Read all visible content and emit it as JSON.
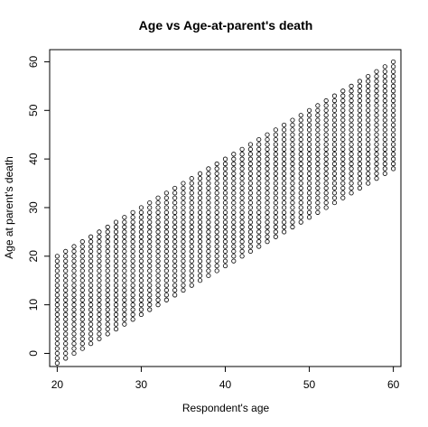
{
  "chart_data": {
    "type": "scatter",
    "title": "Age vs Age-at-parent's death",
    "xlabel": "Respondent's age",
    "ylabel": "Age at parent's death",
    "xlim": [
      19.1,
      60.9
    ],
    "ylim": [
      -2.7,
      62.5
    ],
    "xticks": [
      20,
      30,
      40,
      50,
      60
    ],
    "yticks": [
      0,
      10,
      20,
      30,
      40,
      50,
      60
    ],
    "grid": false,
    "legend": "none",
    "marker": "open-circle",
    "point_color": "#000000",
    "series_pattern": {
      "description_x": "integer ages 20 to 60",
      "y_max_at_x": "x",
      "y_min_at_x": "x - 22",
      "y_step": 1
    }
  }
}
